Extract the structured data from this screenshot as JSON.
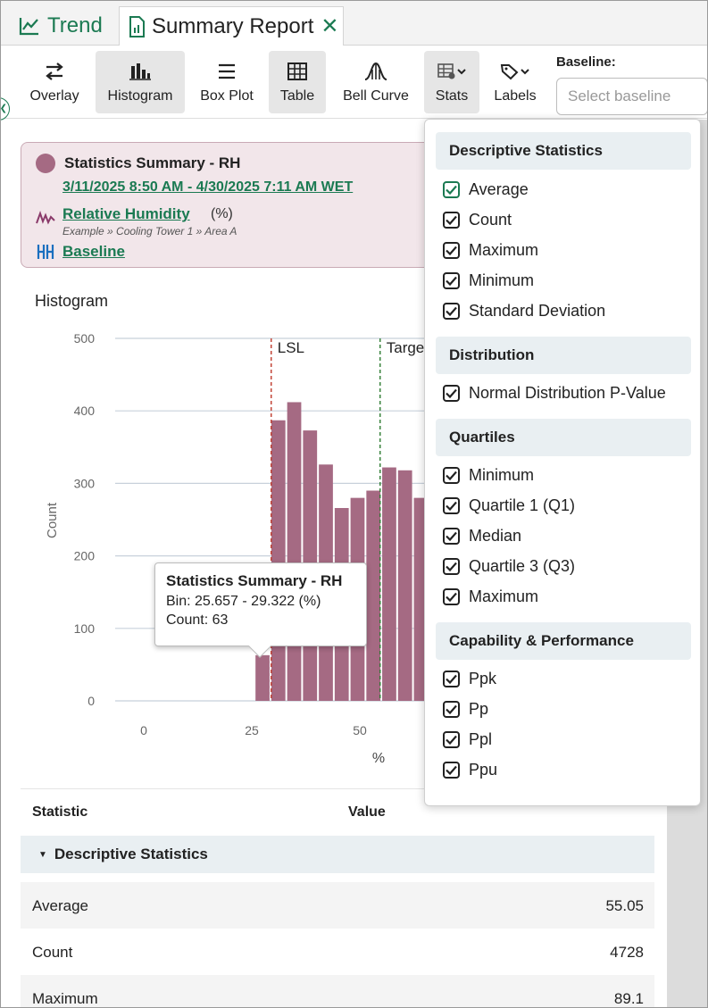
{
  "tabs": [
    {
      "label": "Trend"
    },
    {
      "label": "Summary Report",
      "close": "✕"
    }
  ],
  "toolbar": {
    "overlay": "Overlay",
    "histogram": "Histogram",
    "boxplot": "Box Plot",
    "table": "Table",
    "bellcurve": "Bell Curve",
    "stats": "Stats",
    "labels": "Labels",
    "baseline_label": "Baseline:",
    "baseline_placeholder": "Select baseline"
  },
  "summary": {
    "title": "Statistics Summary - RH",
    "range": "3/11/2025 8:50 AM - 4/30/2025 7:11 AM WET",
    "signal": "Relative Humidity",
    "unit": "(%)",
    "path": "Example » Cooling Tower 1 » Area A",
    "baseline": "Baseline",
    "color": "#a56a83"
  },
  "histogram_title": "Histogram",
  "chart_data": {
    "type": "bar",
    "ylabel": "Count",
    "xlabel": "%",
    "ylim": [
      0,
      500
    ],
    "yticks": [
      0,
      100,
      200,
      300,
      400,
      500
    ],
    "xticks": [
      0,
      25,
      50
    ],
    "bin_width": 3.665,
    "bins": [
      {
        "start": 25.657,
        "count": 63
      },
      {
        "start": 29.322,
        "count": 387
      },
      {
        "start": 32.987,
        "count": 412
      },
      {
        "start": 36.652,
        "count": 373
      },
      {
        "start": 40.317,
        "count": 326
      },
      {
        "start": 43.982,
        "count": 266
      },
      {
        "start": 47.647,
        "count": 280
      },
      {
        "start": 51.312,
        "count": 290
      },
      {
        "start": 54.977,
        "count": 322
      },
      {
        "start": 58.642,
        "count": 318
      },
      {
        "start": 62.307,
        "count": 280
      }
    ],
    "markers": [
      {
        "label": "LSL",
        "x": 29.5,
        "color": "#c0392b"
      },
      {
        "label": "Target",
        "x": 54.7,
        "color": "#2e7d32"
      }
    ],
    "bar_color": "#a56a83",
    "grid": true
  },
  "tooltip": {
    "title": "Statistics Summary - RH",
    "bin": "Bin: 25.657 - 29.322 (%)",
    "count": "Count: 63"
  },
  "table": {
    "col_statistic": "Statistic",
    "col_value": "Value",
    "group": "Descriptive Statistics",
    "rows": [
      {
        "name": "Average",
        "value": "55.05"
      },
      {
        "name": "Count",
        "value": "4728"
      },
      {
        "name": "Maximum",
        "value": "89.1"
      }
    ]
  },
  "stats_menu": {
    "sections": [
      {
        "title": "Descriptive Statistics",
        "items": [
          "Average",
          "Count",
          "Maximum",
          "Minimum",
          "Standard Deviation"
        ]
      },
      {
        "title": "Distribution",
        "items": [
          "Normal Distribution P-Value"
        ]
      },
      {
        "title": "Quartiles",
        "items": [
          "Minimum",
          "Quartile 1 (Q1)",
          "Median",
          "Quartile 3 (Q3)",
          "Maximum"
        ]
      },
      {
        "title": "Capability & Performance",
        "items": [
          "Ppk",
          "Pp",
          "Ppl",
          "Ppu"
        ]
      }
    ]
  }
}
